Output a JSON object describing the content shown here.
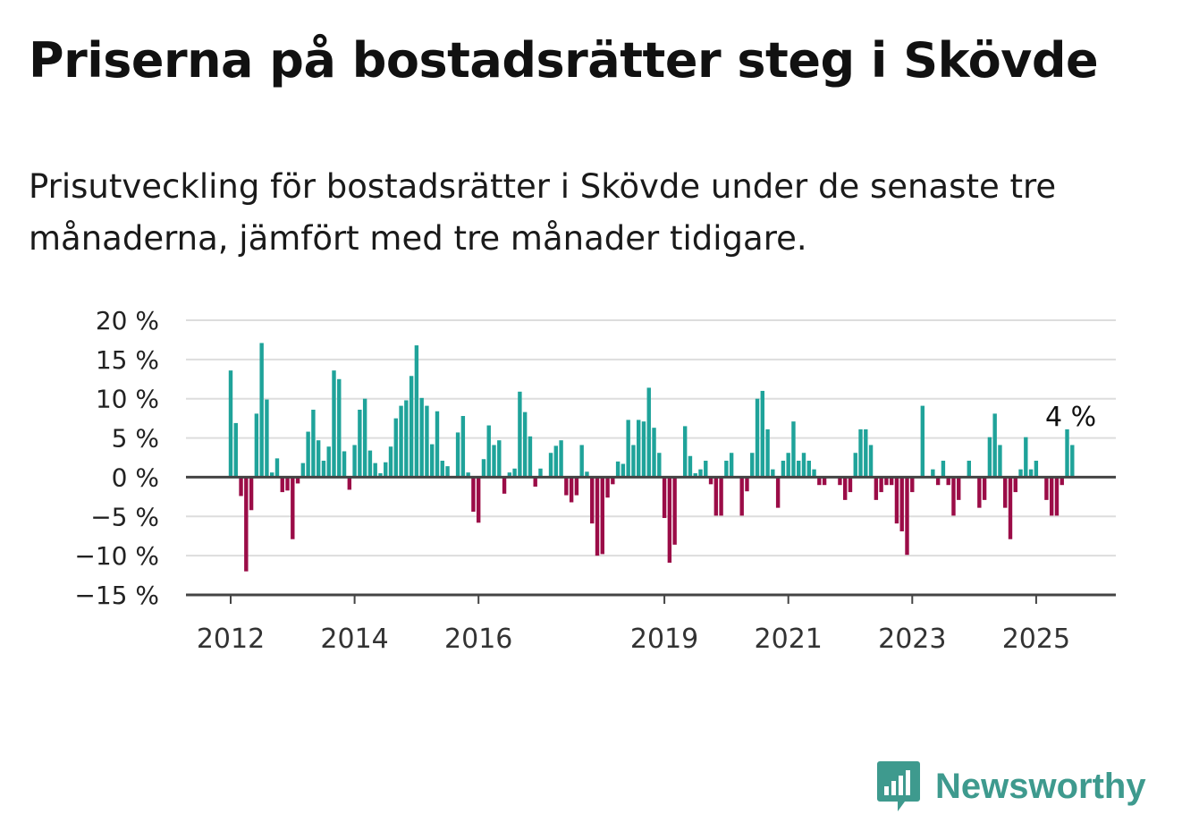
{
  "title": "Priserna på bostadsrätter steg i Skövde",
  "subtitle": "Prisutveckling för bostadsrätter i Skövde under de senaste tre månaderna, jämfört med tre månader tidigare.",
  "annotation": "4 %",
  "brand": {
    "name": "Newsworthy",
    "icon": "newsworthy-logo-icon"
  },
  "colors": {
    "positive": "#1fa39a",
    "negative": "#9b0c47",
    "grid": "#dddddd",
    "zero": "#444444"
  },
  "chart_data": {
    "type": "bar",
    "ylim": [
      -15,
      20
    ],
    "y_ticks": [
      20,
      15,
      10,
      5,
      0,
      -5,
      -10,
      -15
    ],
    "y_tick_labels": [
      "20 %",
      "15 %",
      "10 %",
      "5 %",
      "0 %",
      "−5 %",
      "−10 %",
      "−15 %"
    ],
    "x_ticks": [
      2012,
      2014,
      2016,
      2019,
      2021,
      2023,
      2025
    ],
    "grid": true,
    "annotation": {
      "text": "4 %",
      "year": 2025.5
    },
    "x_start": 2012.0,
    "x_step_years": 0.08333,
    "values": [
      13.6,
      6.9,
      -2.4,
      -12.0,
      -4.2,
      8.1,
      17.1,
      9.9,
      0.6,
      2.4,
      -1.9,
      -1.7,
      -7.9,
      -0.8,
      1.8,
      5.8,
      8.6,
      4.7,
      2.1,
      3.9,
      13.6,
      12.5,
      3.3,
      -1.6,
      4.1,
      8.6,
      10.0,
      3.4,
      1.8,
      0.5,
      1.9,
      3.9,
      7.5,
      9.1,
      9.8,
      12.9,
      16.8,
      10.1,
      9.1,
      4.2,
      8.4,
      2.1,
      1.4,
      0.0,
      5.7,
      7.8,
      0.6,
      -4.4,
      -5.8,
      2.3,
      6.6,
      4.1,
      4.7,
      -2.1,
      0.6,
      1.1,
      10.9,
      8.3,
      5.2,
      -1.2,
      1.1,
      0.0,
      3.1,
      4.0,
      4.7,
      -2.3,
      -3.2,
      -2.3,
      4.1,
      0.7,
      -5.9,
      -10.0,
      -9.8,
      -2.6,
      -0.9,
      2.0,
      1.7,
      7.3,
      4.1,
      7.3,
      7.1,
      11.4,
      6.3,
      3.1,
      -5.2,
      -10.9,
      -8.6,
      0.0,
      6.5,
      2.7,
      0.5,
      1.0,
      2.1,
      -0.9,
      -4.9,
      -4.9,
      2.1,
      3.1,
      0.0,
      -4.9,
      -1.8,
      3.1,
      10.0,
      11.0,
      6.1,
      1.0,
      -3.9,
      2.1,
      3.1,
      7.1,
      2.1,
      3.1,
      2.1,
      1.0,
      -1.0,
      -1.0,
      0.0,
      0.0,
      -1.0,
      -2.9,
      -1.9,
      3.1,
      6.1,
      6.1,
      4.1,
      -2.9,
      -1.9,
      -1.0,
      -1.0,
      -5.9,
      -6.9,
      -9.9,
      -1.9,
      0.0,
      9.1,
      0.0,
      1.0,
      -1.0,
      2.1,
      -1.0,
      -4.9,
      -2.9,
      0.0,
      2.1,
      0.0,
      -3.9,
      -2.9,
      5.1,
      8.1,
      4.1,
      -3.9,
      -7.9,
      -1.9,
      1.0,
      5.1,
      1.0,
      2.1,
      0.0,
      -2.9,
      -4.9,
      -4.9,
      -1.0,
      6.1,
      4.1
    ]
  }
}
